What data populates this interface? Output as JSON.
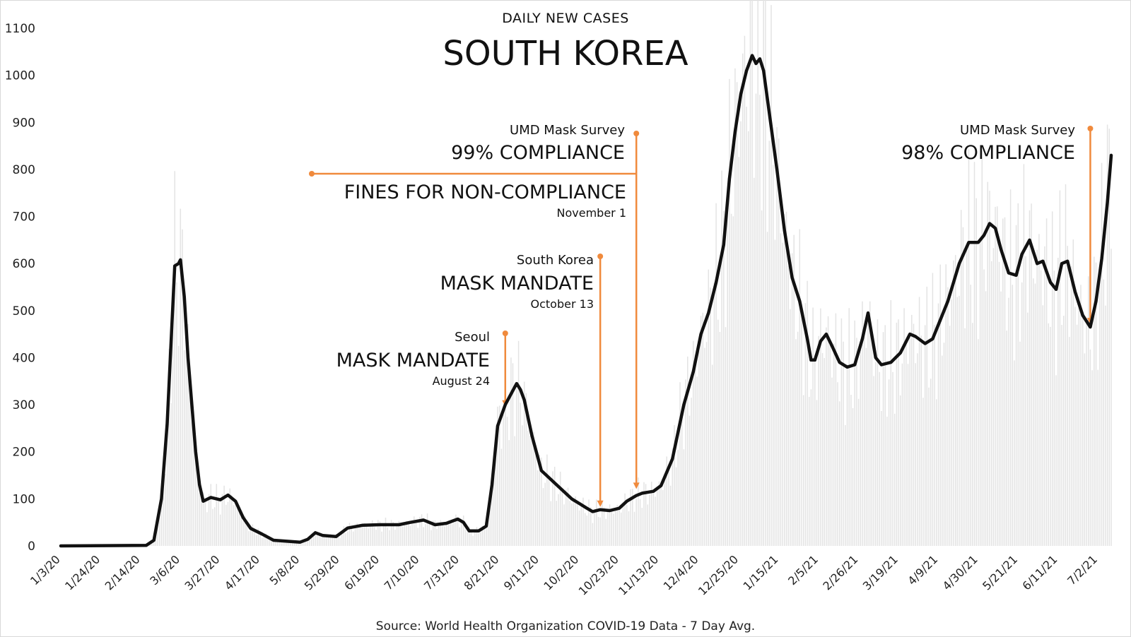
{
  "chart_data": {
    "type": "line",
    "subtitle": "DAILY NEW CASES",
    "title": "SOUTH KOREA",
    "source": "Source: World Health Organization COVID-19 Data - 7 Day Avg.",
    "ylim": [
      0,
      1100
    ],
    "yticks": [
      0,
      100,
      200,
      300,
      400,
      500,
      600,
      700,
      800,
      900,
      1000,
      1100
    ],
    "x_tick_labels": [
      "1/3/20",
      "1/24/20",
      "2/14/20",
      "3/6/20",
      "3/27/20",
      "4/17/20",
      "5/8/20",
      "5/29/20",
      "6/19/20",
      "7/10/20",
      "7/31/20",
      "8/21/20",
      "9/11/20",
      "10/2/20",
      "10/23/20",
      "11/13/20",
      "12/4/20",
      "12/25/20",
      "1/15/21",
      "2/5/21",
      "2/26/21",
      "3/19/21",
      "4/9/21",
      "4/30/21",
      "5/21/21",
      "6/11/21",
      "7/2/21"
    ],
    "start_date": "2020-01-03",
    "end_date": "2021-07-09",
    "bars_present": true,
    "series": [
      {
        "values_7day_avg": [
          [
            "2020-01-03",
            0
          ],
          [
            "2020-02-17",
            1
          ],
          [
            "2020-02-21",
            12
          ],
          [
            "2020-02-25",
            100
          ],
          [
            "2020-02-28",
            260
          ],
          [
            "2020-03-01",
            430
          ],
          [
            "2020-03-03",
            595
          ],
          [
            "2020-03-05",
            600
          ],
          [
            "2020-03-06",
            608
          ],
          [
            "2020-03-08",
            530
          ],
          [
            "2020-03-10",
            400
          ],
          [
            "2020-03-12",
            300
          ],
          [
            "2020-03-14",
            200
          ],
          [
            "2020-03-16",
            130
          ],
          [
            "2020-03-18",
            95
          ],
          [
            "2020-03-22",
            103
          ],
          [
            "2020-03-27",
            98
          ],
          [
            "2020-03-31",
            108
          ],
          [
            "2020-04-04",
            95
          ],
          [
            "2020-04-08",
            60
          ],
          [
            "2020-04-12",
            37
          ],
          [
            "2020-04-18",
            25
          ],
          [
            "2020-04-24",
            12
          ],
          [
            "2020-05-08",
            8
          ],
          [
            "2020-05-12",
            14
          ],
          [
            "2020-05-16",
            28
          ],
          [
            "2020-05-20",
            22
          ],
          [
            "2020-05-27",
            20
          ],
          [
            "2020-06-02",
            38
          ],
          [
            "2020-06-10",
            44
          ],
          [
            "2020-06-19",
            45
          ],
          [
            "2020-06-29",
            45
          ],
          [
            "2020-07-05",
            50
          ],
          [
            "2020-07-12",
            55
          ],
          [
            "2020-07-18",
            45
          ],
          [
            "2020-07-24",
            48
          ],
          [
            "2020-07-30",
            57
          ],
          [
            "2020-08-02",
            50
          ],
          [
            "2020-08-05",
            32
          ],
          [
            "2020-08-10",
            32
          ],
          [
            "2020-08-14",
            42
          ],
          [
            "2020-08-17",
            130
          ],
          [
            "2020-08-20",
            255
          ],
          [
            "2020-08-24",
            300
          ],
          [
            "2020-08-28",
            330
          ],
          [
            "2020-08-30",
            345
          ],
          [
            "2020-09-01",
            332
          ],
          [
            "2020-09-03",
            310
          ],
          [
            "2020-09-07",
            235
          ],
          [
            "2020-09-12",
            160
          ],
          [
            "2020-09-20",
            130
          ],
          [
            "2020-09-28",
            100
          ],
          [
            "2020-10-02",
            90
          ],
          [
            "2020-10-06",
            80
          ],
          [
            "2020-10-09",
            73
          ],
          [
            "2020-10-13",
            77
          ],
          [
            "2020-10-18",
            75
          ],
          [
            "2020-10-23",
            80
          ],
          [
            "2020-10-27",
            95
          ],
          [
            "2020-11-01",
            107
          ],
          [
            "2020-11-04",
            112
          ],
          [
            "2020-11-10",
            116
          ],
          [
            "2020-11-14",
            128
          ],
          [
            "2020-11-20",
            185
          ],
          [
            "2020-11-26",
            300
          ],
          [
            "2020-12-01",
            370
          ],
          [
            "2020-12-05",
            450
          ],
          [
            "2020-12-09",
            495
          ],
          [
            "2020-12-13",
            560
          ],
          [
            "2020-12-17",
            640
          ],
          [
            "2020-12-20",
            780
          ],
          [
            "2020-12-23",
            880
          ],
          [
            "2020-12-26",
            960
          ],
          [
            "2020-12-29",
            1010
          ],
          [
            "2021-01-01",
            1042
          ],
          [
            "2021-01-03",
            1025
          ],
          [
            "2021-01-05",
            1035
          ],
          [
            "2021-01-07",
            1010
          ],
          [
            "2021-01-10",
            920
          ],
          [
            "2021-01-14",
            800
          ],
          [
            "2021-01-18",
            670
          ],
          [
            "2021-01-22",
            570
          ],
          [
            "2021-01-26",
            520
          ],
          [
            "2021-01-30",
            440
          ],
          [
            "2021-02-01",
            395
          ],
          [
            "2021-02-03",
            395
          ],
          [
            "2021-02-06",
            435
          ],
          [
            "2021-02-09",
            450
          ],
          [
            "2021-02-12",
            425
          ],
          [
            "2021-02-16",
            390
          ],
          [
            "2021-02-20",
            380
          ],
          [
            "2021-02-24",
            385
          ],
          [
            "2021-02-28",
            440
          ],
          [
            "2021-03-03",
            495
          ],
          [
            "2021-03-07",
            400
          ],
          [
            "2021-03-10",
            385
          ],
          [
            "2021-03-15",
            390
          ],
          [
            "2021-03-20",
            410
          ],
          [
            "2021-03-25",
            450
          ],
          [
            "2021-03-28",
            445
          ],
          [
            "2021-04-02",
            430
          ],
          [
            "2021-04-06",
            440
          ],
          [
            "2021-04-10",
            480
          ],
          [
            "2021-04-14",
            520
          ],
          [
            "2021-04-20",
            600
          ],
          [
            "2021-04-25",
            645
          ],
          [
            "2021-04-30",
            645
          ],
          [
            "2021-05-03",
            660
          ],
          [
            "2021-05-06",
            685
          ],
          [
            "2021-05-09",
            675
          ],
          [
            "2021-05-12",
            630
          ],
          [
            "2021-05-16",
            580
          ],
          [
            "2021-05-20",
            575
          ],
          [
            "2021-05-23",
            620
          ],
          [
            "2021-05-27",
            650
          ],
          [
            "2021-05-31",
            600
          ],
          [
            "2021-06-03",
            605
          ],
          [
            "2021-06-07",
            560
          ],
          [
            "2021-06-10",
            545
          ],
          [
            "2021-06-13",
            600
          ],
          [
            "2021-06-16",
            605
          ],
          [
            "2021-06-20",
            540
          ],
          [
            "2021-06-24",
            490
          ],
          [
            "2021-06-28",
            465
          ],
          [
            "2021-07-01",
            520
          ],
          [
            "2021-07-04",
            610
          ],
          [
            "2021-07-07",
            730
          ],
          [
            "2021-07-09",
            830
          ]
        ]
      }
    ],
    "annotations": [
      {
        "date": "2020-08-24",
        "line1": "Seoul",
        "line2": "MASK MANDATE",
        "line3": "August 24",
        "value": 290
      },
      {
        "date": "2020-10-13",
        "line1": "South Korea",
        "line2": "MASK MANDATE",
        "line3": "October 13",
        "value": 77
      },
      {
        "date": "2020-11-01",
        "line1": "UMD Mask Survey",
        "line2": "99% COMPLIANCE",
        "line3": "FINES FOR NON-COMPLIANCE",
        "line4": "November 1",
        "value": 115
      },
      {
        "date": "2021-06-28",
        "line1": "UMD Mask Survey",
        "line2": "98% COMPLIANCE",
        "value": 465
      }
    ],
    "colors": {
      "line": "#111111",
      "annotation": "#f08a3c",
      "bars": "#e3e3e3",
      "text": "#111111"
    }
  }
}
